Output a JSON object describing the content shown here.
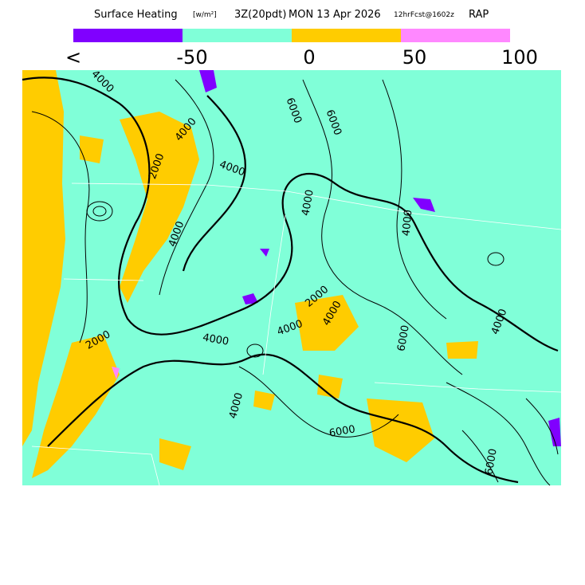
{
  "header": {
    "main": "Surface Heating",
    "units": "[w/m²]",
    "time": "3Z(20pdt)",
    "date": "MON 13 Apr 2026",
    "forecast": "12hrFcst@1602z",
    "model": "RAP"
  },
  "legend": {
    "colors": [
      "#8000ff",
      "#80ffd8",
      "#ffcc00",
      "#ff88ff"
    ],
    "labels": [
      "<",
      "-50",
      "0",
      "50",
      "100"
    ]
  },
  "map": {
    "contour_labels": [
      "4000",
      "4000",
      "4000",
      "4000",
      "4000",
      "4000",
      "4000",
      "4000",
      "4000",
      "4000",
      "4000",
      "2000",
      "2000",
      "2000",
      "6000",
      "6000",
      "6000",
      "6000",
      "6000"
    ]
  }
}
